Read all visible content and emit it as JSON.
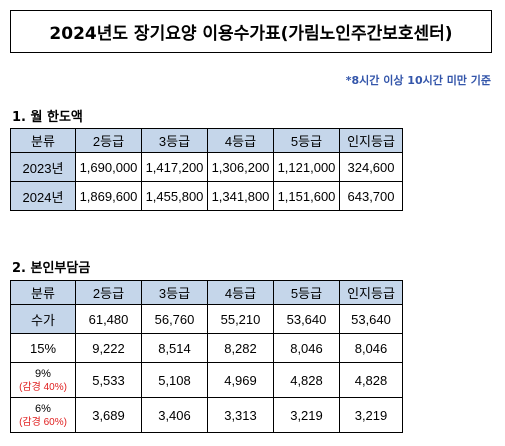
{
  "title": "2024년도 장기요양 이용수가표(가림노인주간보호센터)",
  "note": "*8시간 이상 10시간 미만 기준",
  "section1": {
    "heading": "1. 월 한도액",
    "headers": [
      "분류",
      "2등급",
      "3등급",
      "4등급",
      "5등급",
      "인지등급"
    ],
    "rows": [
      {
        "label": "2023년",
        "values": [
          "1,690,000",
          "1,417,200",
          "1,306,200",
          "1,121,000",
          "324,600"
        ]
      },
      {
        "label": "2024년",
        "values": [
          "1,869,600",
          "1,455,800",
          "1,341,800",
          "1,151,600",
          "643,700"
        ]
      }
    ]
  },
  "section2": {
    "heading": "2. 본인부담금",
    "headers": [
      "분류",
      "2등급",
      "3등급",
      "4등급",
      "5등급",
      "인지등급"
    ],
    "supply": {
      "label": "수가",
      "values": [
        "61,480",
        "56,760",
        "55,210",
        "53,640",
        "53,640"
      ]
    },
    "rate15": {
      "label": "15%",
      "values": [
        "9,222",
        "8,514",
        "8,282",
        "8,046",
        "8,046"
      ]
    },
    "rate9": {
      "label": "9%",
      "sublabel": "(감경 40%)",
      "values": [
        "5,533",
        "5,108",
        "4,969",
        "4,828",
        "4,828"
      ]
    },
    "rate6": {
      "label": "6%",
      "sublabel": "(감경 60%)",
      "values": [
        "3,689",
        "3,406",
        "3,313",
        "3,219",
        "3,219"
      ]
    }
  }
}
